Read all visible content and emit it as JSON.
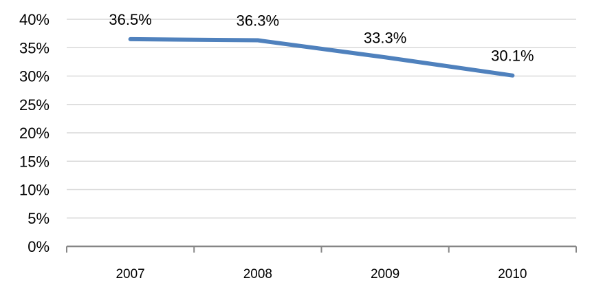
{
  "chart_data": {
    "type": "line",
    "categories": [
      "2007",
      "2008",
      "2009",
      "2010"
    ],
    "series": [
      {
        "values": [
          36.5,
          36.3,
          33.3,
          30.1
        ],
        "data_labels": [
          "36.5%",
          "36.3%",
          "33.3%",
          "30.1%"
        ],
        "color": "#4F81BD"
      }
    ],
    "y_ticks": [
      "0%",
      "5%",
      "10%",
      "15%",
      "20%",
      "25%",
      "30%",
      "35%",
      "40%"
    ],
    "ylim": [
      0,
      40
    ],
    "grid": true,
    "gridline_color": "#d9d9d9",
    "axis_color": "#868686",
    "legend": "none",
    "title": "",
    "xlabel": "",
    "ylabel": ""
  }
}
